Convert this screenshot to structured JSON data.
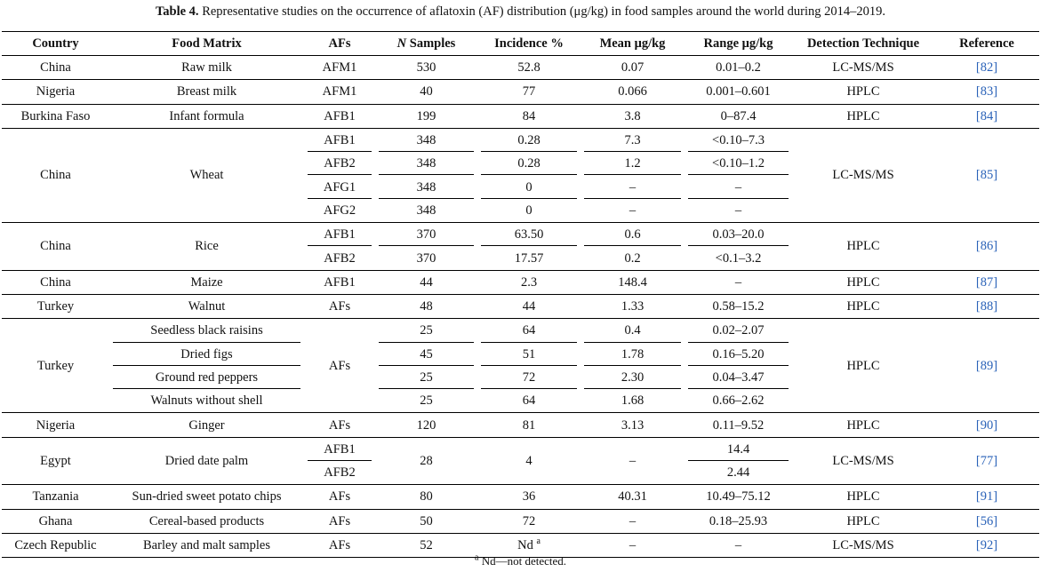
{
  "caption": {
    "label": "Table 4.",
    "text": " Representative studies on the occurrence of aflatoxin (AF) distribution (μg/kg) in food samples around the world during 2014–2019."
  },
  "headers": {
    "country": "Country",
    "matrix": "Food Matrix",
    "afs": "AFs",
    "n_italic": "N",
    "n_rest": " Samples",
    "incidence": "Incidence %",
    "mean": "Mean μg/kg",
    "range": "Range μg/kg",
    "technique": "Detection Technique",
    "reference": "Reference"
  },
  "rows": {
    "r1": {
      "country": "China",
      "matrix": "Raw milk",
      "afs": "AFM1",
      "n": "530",
      "inc": "52.8",
      "mean": "0.07",
      "range": "0.01–0.2",
      "tech": "LC-MS/MS",
      "ref": "[82]"
    },
    "r2": {
      "country": "Nigeria",
      "matrix": "Breast milk",
      "afs": "AFM1",
      "n": "40",
      "inc": "77",
      "mean": "0.066",
      "range": "0.001–0.601",
      "tech": "HPLC",
      "ref": "[83]"
    },
    "r3": {
      "country": "Burkina Faso",
      "matrix": "Infant formula",
      "afs": "AFB1",
      "n": "199",
      "inc": "84",
      "mean": "3.8",
      "range": "0–87.4",
      "tech": "HPLC",
      "ref": "[84]"
    },
    "wheat": {
      "country": "China",
      "matrix": "Wheat",
      "tech": "LC-MS/MS",
      "ref": "[85]",
      "sub": [
        {
          "afs": "AFB1",
          "n": "348",
          "inc": "0.28",
          "mean": "7.3",
          "range": "<0.10–7.3"
        },
        {
          "afs": "AFB2",
          "n": "348",
          "inc": "0.28",
          "mean": "1.2",
          "range": "<0.10–1.2"
        },
        {
          "afs": "AFG1",
          "n": "348",
          "inc": "0",
          "mean": "–",
          "range": "–"
        },
        {
          "afs": "AFG2",
          "n": "348",
          "inc": "0",
          "mean": "–",
          "range": "–"
        }
      ]
    },
    "rice": {
      "country": "China",
      "matrix": "Rice",
      "tech": "HPLC",
      "ref": "[86]",
      "sub": [
        {
          "afs": "AFB1",
          "n": "370",
          "inc": "63.50",
          "mean": "0.6",
          "range": "0.03–20.0"
        },
        {
          "afs": "AFB2",
          "n": "370",
          "inc": "17.57",
          "mean": "0.2",
          "range": "<0.1–3.2"
        }
      ]
    },
    "r6": {
      "country": "China",
      "matrix": "Maize",
      "afs": "AFB1",
      "n": "44",
      "inc": "2.3",
      "mean": "148.4",
      "range": "–",
      "tech": "HPLC",
      "ref": "[87]"
    },
    "r7": {
      "country": "Turkey",
      "matrix": "Walnut",
      "afs": "AFs",
      "n": "48",
      "inc": "44",
      "mean": "1.33",
      "range": "0.58–15.2",
      "tech": "HPLC",
      "ref": "[88]"
    },
    "turkey": {
      "country": "Turkey",
      "afs": "AFs",
      "tech": "HPLC",
      "ref": "[89]",
      "sub": [
        {
          "matrix": "Seedless black raisins",
          "n": "25",
          "inc": "64",
          "mean": "0.4",
          "range": "0.02–2.07"
        },
        {
          "matrix": "Dried figs",
          "n": "45",
          "inc": "51",
          "mean": "1.78",
          "range": "0.16–5.20"
        },
        {
          "matrix": "Ground red peppers",
          "n": "25",
          "inc": "72",
          "mean": "2.30",
          "range": "0.04–3.47"
        },
        {
          "matrix": "Walnuts without shell",
          "n": "25",
          "inc": "64",
          "mean": "1.68",
          "range": "0.66–2.62"
        }
      ]
    },
    "r9": {
      "country": "Nigeria",
      "matrix": "Ginger",
      "afs": "AFs",
      "n": "120",
      "inc": "81",
      "mean": "3.13",
      "range": "0.11–9.52",
      "tech": "HPLC",
      "ref": "[90]"
    },
    "egypt": {
      "country": "Egypt",
      "matrix": "Dried date palm",
      "n": "28",
      "inc": "4",
      "mean": "–",
      "tech": "LC-MS/MS",
      "ref": "[77]",
      "afs1": "AFB1",
      "afs2": "AFB2",
      "range1": "14.4",
      "range2": "2.44"
    },
    "r11": {
      "country": "Tanzania",
      "matrix": "Sun-dried sweet potato chips",
      "afs": "AFs",
      "n": "80",
      "inc": "36",
      "mean": "40.31",
      "range": "10.49–75.12",
      "tech": "HPLC",
      "ref": "[91]"
    },
    "r12": {
      "country": "Ghana",
      "matrix": "Cereal-based products",
      "afs": "AFs",
      "n": "50",
      "inc": "72",
      "mean": "–",
      "range": "0.18–25.93",
      "tech": "HPLC",
      "ref": "[56]"
    },
    "r13": {
      "country": "Czech Republic",
      "matrix": "Barley and malt samples",
      "afs": "AFs",
      "n": "52",
      "inc": "Nd",
      "inc_sup": "a",
      "mean": "–",
      "range": "–",
      "tech": "LC-MS/MS",
      "ref": "[92]"
    }
  },
  "footnote": {
    "sup": "a",
    "text": " Nd—not detected."
  }
}
